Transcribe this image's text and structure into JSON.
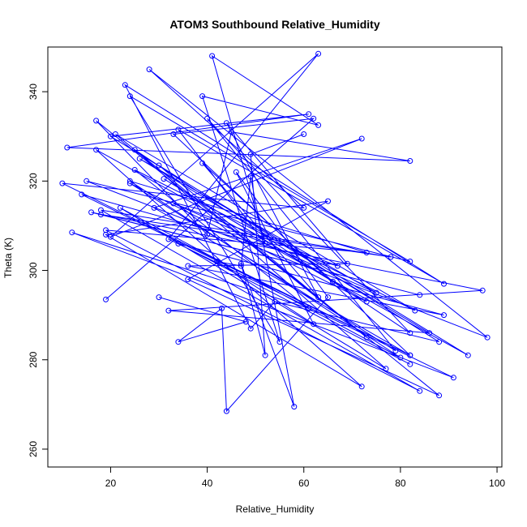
{
  "chart_data": {
    "type": "line",
    "title": "ATOM3 Southbound Relative_Humidity",
    "xlabel": "Relative_Humidity",
    "ylabel": "Theta (K)",
    "xlim": [
      7,
      101
    ],
    "ylim": [
      256,
      350
    ],
    "xticks": [
      20,
      40,
      60,
      80,
      100
    ],
    "yticks": [
      260,
      280,
      300,
      320,
      340
    ],
    "grid": false,
    "color": "#0000ff",
    "series": [
      {
        "x": [
          19,
          62,
          33,
          82,
          10,
          60,
          28,
          98,
          15,
          82,
          24,
          55,
          39,
          63,
          41,
          52,
          34,
          89,
          23,
          49,
          54,
          88,
          30,
          73,
          17,
          40,
          45,
          82,
          11,
          61,
          20,
          94,
          17,
          72,
          19,
          65,
          36,
          88,
          21,
          83,
          25,
          61,
          12,
          91,
          32,
          63,
          20,
          72,
          29,
          82,
          14,
          67,
          33,
          75,
          26,
          86,
          32,
          97,
          16,
          84,
          18,
          78,
          18,
          84,
          19,
          73,
          24,
          80,
          22,
          77,
          25,
          82,
          40,
          79,
          24,
          73,
          31,
          66,
          39,
          63,
          44,
          69,
          36,
          89,
          34,
          82
        ],
        "y": [
          293.5,
          334,
          330.5,
          281,
          319.5,
          314,
          345,
          285,
          320,
          302,
          339,
          284,
          339,
          332.5,
          348,
          306,
          331.5,
          297,
          341.5,
          287,
          293,
          284,
          323.5,
          285,
          333.5,
          308,
          331,
          324.5,
          327.5,
          335,
          330,
          281,
          327,
          274,
          308,
          315.5,
          298,
          272,
          330.5,
          291,
          322.5,
          291.5,
          308.5,
          276,
          307,
          348.5,
          307.5,
          329.5,
          314,
          281,
          317,
          301,
          315,
          295,
          325,
          286,
          291,
          295.5,
          313,
          294.5,
          312.5,
          303,
          313.5,
          273,
          309,
          304,
          320,
          280.5,
          314,
          278,
          327,
          286,
          334,
          282,
          319.5,
          293,
          320.5,
          297.5,
          324,
          294,
          333,
          301.5,
          301,
          290,
          306,
          279
        ]
      },
      {
        "x": [
          30,
          48,
          34,
          43,
          44,
          65,
          46,
          62,
          42,
          47,
          49,
          58,
          47,
          52,
          49,
          60
        ],
        "y": [
          294,
          288.5,
          284,
          291.5,
          268.5,
          294,
          322,
          288,
          302,
          301,
          321,
          269.5,
          301.5,
          281,
          326,
          330.5
        ]
      }
    ]
  }
}
